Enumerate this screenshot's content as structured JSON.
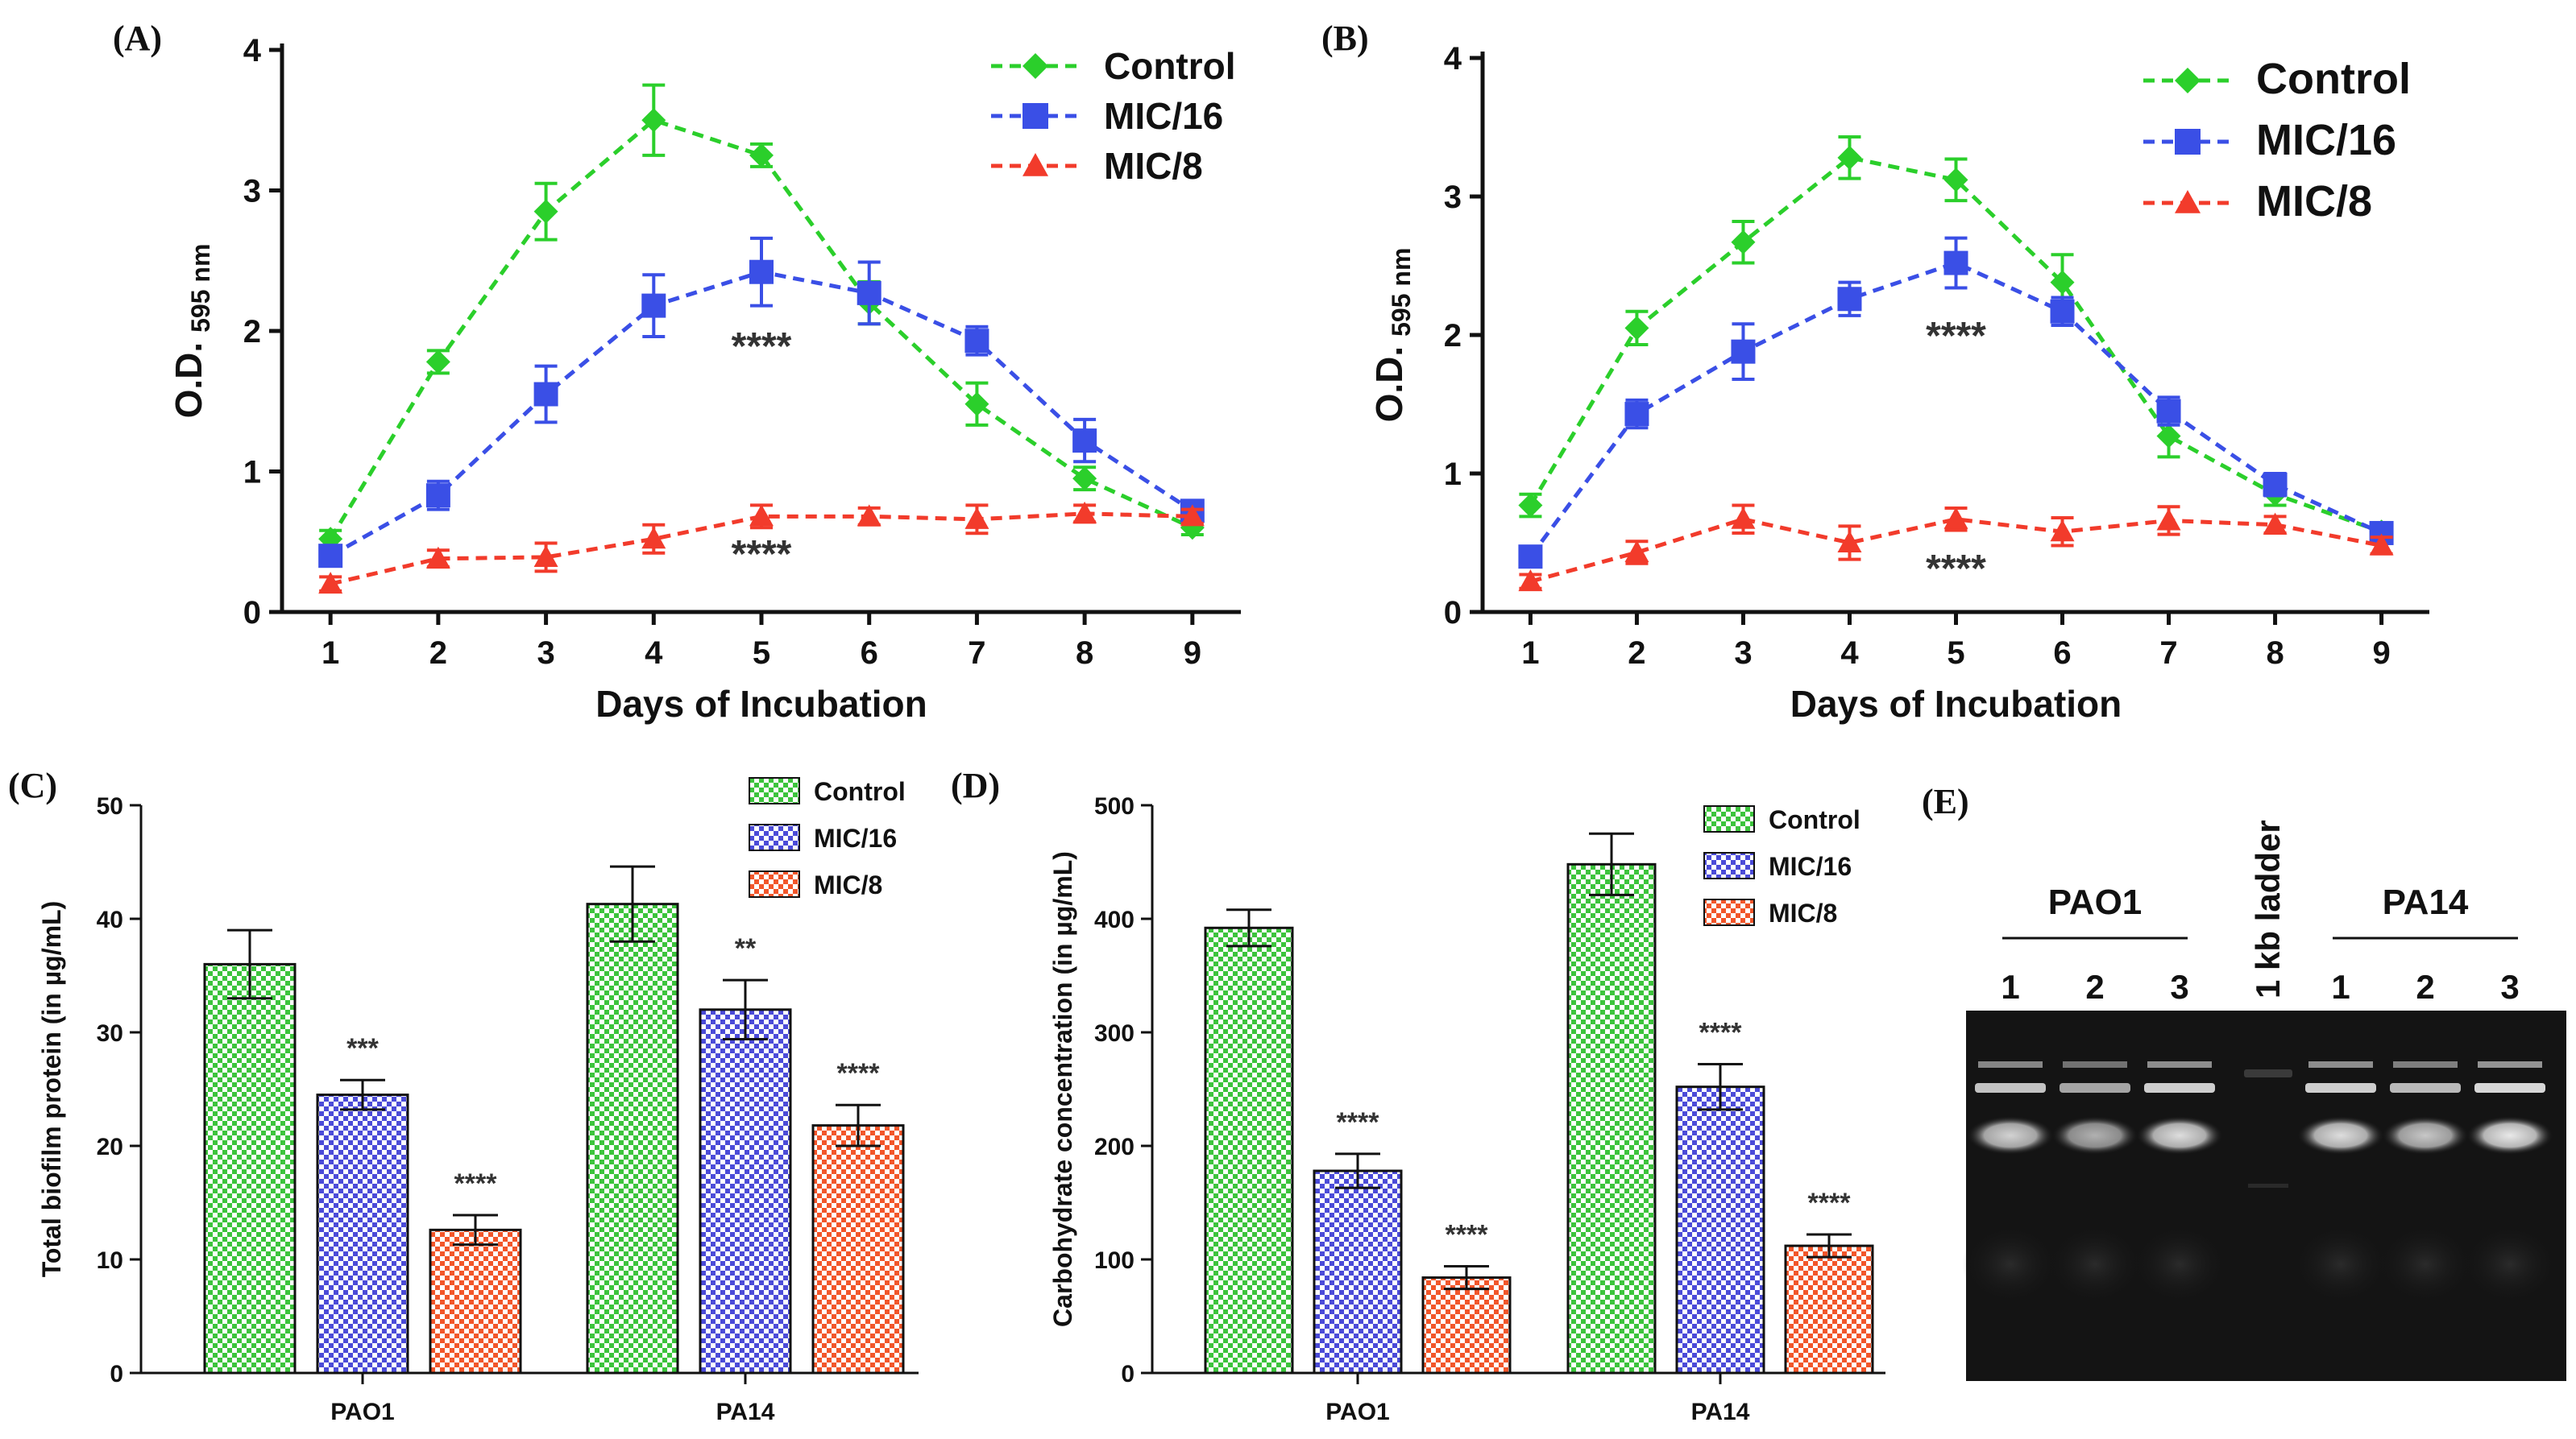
{
  "colors": {
    "control": "#2bcf2b",
    "mic16": "#3a4fe6",
    "mic8": "#f23b2b",
    "bar_control": "#3cc43c",
    "bar_mic16": "#4b4bd8",
    "bar_mic8": "#f2562a",
    "gel_bg": "#141414"
  },
  "chart_data": [
    {
      "type": "line",
      "panel": "(A)",
      "xlabel": "Days of Incubation",
      "ylabel": "O.D.",
      "ylabel_sub": "595 nm",
      "x": [
        1,
        2,
        3,
        4,
        5,
        6,
        7,
        8,
        9
      ],
      "xticks": [
        "1",
        "2",
        "3",
        "4",
        "5",
        "6",
        "7",
        "8",
        "9"
      ],
      "yticks": [
        "0",
        "1",
        "2",
        "3",
        "4"
      ],
      "ylim": [
        0,
        4
      ],
      "legend": "top-right",
      "series": [
        {
          "name": "Control",
          "key": "control",
          "marker": "diamond",
          "values": [
            0.52,
            1.78,
            2.85,
            3.5,
            3.25,
            2.2,
            1.48,
            0.95,
            0.6
          ],
          "errors": [
            0.06,
            0.08,
            0.2,
            0.25,
            0.08,
            0.15,
            0.15,
            0.08,
            0.05
          ]
        },
        {
          "name": "MIC/16",
          "key": "mic16",
          "marker": "square",
          "values": [
            0.4,
            0.83,
            1.55,
            2.18,
            2.42,
            2.27,
            1.93,
            1.22,
            0.72
          ],
          "errors": [
            0.06,
            0.1,
            0.2,
            0.22,
            0.24,
            0.22,
            0.1,
            0.15,
            0.06
          ]
        },
        {
          "name": "MIC/8",
          "key": "mic8",
          "marker": "triangle",
          "values": [
            0.2,
            0.38,
            0.39,
            0.52,
            0.68,
            0.68,
            0.66,
            0.7,
            0.68
          ],
          "errors": [
            0.05,
            0.06,
            0.1,
            0.1,
            0.08,
            0.06,
            0.1,
            0.06,
            0.05
          ]
        }
      ],
      "annotations": [
        {
          "text": "****",
          "x": 5.0,
          "y": 1.8
        },
        {
          "text": "****",
          "x": 5.0,
          "y": 0.32
        }
      ]
    },
    {
      "type": "line",
      "panel": "(B)",
      "xlabel": "Days of Incubation",
      "ylabel": "O.D.",
      "ylabel_sub": "595 nm",
      "x": [
        1,
        2,
        3,
        4,
        5,
        6,
        7,
        8,
        9
      ],
      "xticks": [
        "1",
        "2",
        "3",
        "4",
        "5",
        "6",
        "7",
        "8",
        "9"
      ],
      "yticks": [
        "0",
        "1",
        "2",
        "3",
        "4"
      ],
      "ylim": [
        0,
        4
      ],
      "legend": "top-right",
      "series": [
        {
          "name": "Control",
          "key": "control",
          "marker": "diamond",
          "values": [
            0.77,
            2.05,
            2.67,
            3.28,
            3.12,
            2.38,
            1.27,
            0.85,
            0.58
          ],
          "errors": [
            0.08,
            0.12,
            0.15,
            0.15,
            0.15,
            0.2,
            0.15,
            0.08,
            0.05
          ]
        },
        {
          "name": "MIC/16",
          "key": "mic16",
          "marker": "square",
          "values": [
            0.4,
            1.43,
            1.88,
            2.26,
            2.52,
            2.17,
            1.45,
            0.92,
            0.57
          ],
          "errors": [
            0.06,
            0.1,
            0.2,
            0.12,
            0.18,
            0.1,
            0.1,
            0.08,
            0.05
          ]
        },
        {
          "name": "MIC/8",
          "key": "mic8",
          "marker": "triangle",
          "values": [
            0.22,
            0.43,
            0.67,
            0.5,
            0.67,
            0.58,
            0.66,
            0.63,
            0.48
          ],
          "errors": [
            0.05,
            0.08,
            0.1,
            0.12,
            0.08,
            0.1,
            0.1,
            0.06,
            0.06
          ]
        }
      ],
      "annotations": [
        {
          "text": "****",
          "x": 5.0,
          "y": 1.9
        },
        {
          "text": "****",
          "x": 5.0,
          "y": 0.22
        }
      ]
    },
    {
      "type": "bar",
      "panel": "(C)",
      "ylabel": "Total biofilm protein (in µg/mL)",
      "categories": [
        "PAO1",
        "PA14"
      ],
      "yticks": [
        "0",
        "10",
        "20",
        "30",
        "40",
        "50"
      ],
      "ylim": [
        0,
        50
      ],
      "legend": "top-right",
      "series": [
        {
          "name": "Control",
          "key": "bar_control",
          "values": [
            36.0,
            41.3
          ],
          "errors": [
            3.0,
            3.3
          ],
          "sig": [
            "",
            ""
          ]
        },
        {
          "name": "MIC/16",
          "key": "bar_mic16",
          "values": [
            24.5,
            32.0
          ],
          "errors": [
            1.3,
            2.6
          ],
          "sig": [
            "***",
            "**"
          ]
        },
        {
          "name": "MIC/8",
          "key": "bar_mic8",
          "values": [
            12.6,
            21.8
          ],
          "errors": [
            1.3,
            1.8
          ],
          "sig": [
            "****",
            "****"
          ]
        }
      ]
    },
    {
      "type": "bar",
      "panel": "(D)",
      "ylabel": "Carbohydrate concentration (in µg/mL)",
      "categories": [
        "PAO1",
        "PA14"
      ],
      "yticks": [
        "0",
        "100",
        "200",
        "300",
        "400",
        "500"
      ],
      "ylim": [
        0,
        500
      ],
      "legend": "top-right",
      "series": [
        {
          "name": "Control",
          "key": "bar_control",
          "values": [
            392,
            448
          ],
          "errors": [
            16,
            27
          ],
          "sig": [
            "",
            ""
          ]
        },
        {
          "name": "MIC/16",
          "key": "bar_mic16",
          "values": [
            178,
            252
          ],
          "errors": [
            15,
            20
          ],
          "sig": [
            "****",
            "****"
          ]
        },
        {
          "name": "MIC/8",
          "key": "bar_mic8",
          "values": [
            84,
            112
          ],
          "errors": [
            10,
            10
          ],
          "sig": [
            "****",
            "****"
          ]
        }
      ]
    }
  ],
  "gel": {
    "panel": "(E)",
    "ladder_label": "1 kb ladder",
    "groups": [
      {
        "name": "PAO1",
        "lanes": [
          "1",
          "2",
          "3"
        ]
      },
      {
        "name": "PA14",
        "lanes": [
          "1",
          "2",
          "3"
        ]
      }
    ]
  }
}
